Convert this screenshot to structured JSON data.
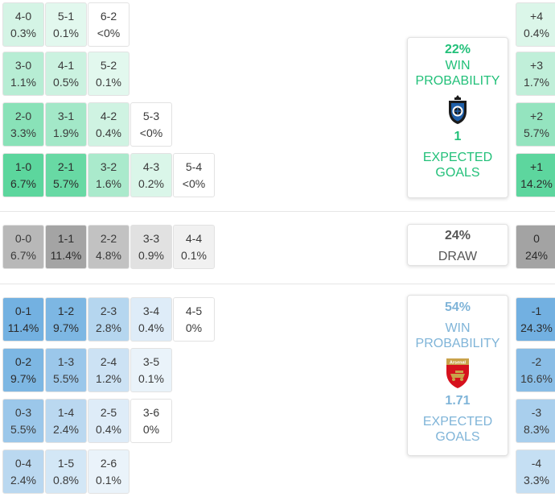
{
  "home": {
    "win_pct": "22%",
    "win_label": "WIN\nPROBABILITY",
    "expected_goals": "1",
    "xg_label": "EXPECTED\nGOALS",
    "color": "#22c079"
  },
  "draw": {
    "pct": "24%",
    "label": "DRAW"
  },
  "away": {
    "win_pct": "54%",
    "win_label": "WIN\nPROBABILITY",
    "expected_goals": "1.71",
    "xg_label": "EXPECTED\nGOALS",
    "color": "#7fb4d8"
  },
  "crest_icons": [
    "club-brugge-crest-icon",
    "arsenal-crest-icon"
  ],
  "crest_text": {
    "arsenal": "Arsenal"
  },
  "chart_data": {
    "type": "table",
    "scores": [
      {
        "score": "4-0",
        "pct": "0.3%",
        "value": 0.3,
        "group": "home",
        "row": 0,
        "col": 0
      },
      {
        "score": "5-1",
        "pct": "0.1%",
        "value": 0.1,
        "group": "home",
        "row": 0,
        "col": 1
      },
      {
        "score": "6-2",
        "pct": "<0%",
        "value": 0,
        "group": "home",
        "row": 0,
        "col": 2
      },
      {
        "score": "3-0",
        "pct": "1.1%",
        "value": 1.1,
        "group": "home",
        "row": 1,
        "col": 0
      },
      {
        "score": "4-1",
        "pct": "0.5%",
        "value": 0.5,
        "group": "home",
        "row": 1,
        "col": 1
      },
      {
        "score": "5-2",
        "pct": "0.1%",
        "value": 0.1,
        "group": "home",
        "row": 1,
        "col": 2
      },
      {
        "score": "2-0",
        "pct": "3.3%",
        "value": 3.3,
        "group": "home",
        "row": 2,
        "col": 0
      },
      {
        "score": "3-1",
        "pct": "1.9%",
        "value": 1.9,
        "group": "home",
        "row": 2,
        "col": 1
      },
      {
        "score": "4-2",
        "pct": "0.4%",
        "value": 0.4,
        "group": "home",
        "row": 2,
        "col": 2
      },
      {
        "score": "5-3",
        "pct": "<0%",
        "value": 0,
        "group": "home",
        "row": 2,
        "col": 3
      },
      {
        "score": "1-0",
        "pct": "6.7%",
        "value": 6.7,
        "group": "home",
        "row": 3,
        "col": 0
      },
      {
        "score": "2-1",
        "pct": "5.7%",
        "value": 5.7,
        "group": "home",
        "row": 3,
        "col": 1
      },
      {
        "score": "3-2",
        "pct": "1.6%",
        "value": 1.6,
        "group": "home",
        "row": 3,
        "col": 2
      },
      {
        "score": "4-3",
        "pct": "0.2%",
        "value": 0.2,
        "group": "home",
        "row": 3,
        "col": 3
      },
      {
        "score": "5-4",
        "pct": "<0%",
        "value": 0,
        "group": "home",
        "row": 3,
        "col": 4
      },
      {
        "score": "0-0",
        "pct": "6.7%",
        "value": 6.7,
        "group": "draw",
        "row": 4,
        "col": 0
      },
      {
        "score": "1-1",
        "pct": "11.4%",
        "value": 11.4,
        "group": "draw",
        "row": 4,
        "col": 1
      },
      {
        "score": "2-2",
        "pct": "4.8%",
        "value": 4.8,
        "group": "draw",
        "row": 4,
        "col": 2
      },
      {
        "score": "3-3",
        "pct": "0.9%",
        "value": 0.9,
        "group": "draw",
        "row": 4,
        "col": 3
      },
      {
        "score": "4-4",
        "pct": "0.1%",
        "value": 0.1,
        "group": "draw",
        "row": 4,
        "col": 4
      },
      {
        "score": "0-1",
        "pct": "11.4%",
        "value": 11.4,
        "group": "away",
        "row": 5,
        "col": 0
      },
      {
        "score": "1-2",
        "pct": "9.7%",
        "value": 9.7,
        "group": "away",
        "row": 5,
        "col": 1
      },
      {
        "score": "2-3",
        "pct": "2.8%",
        "value": 2.8,
        "group": "away",
        "row": 5,
        "col": 2
      },
      {
        "score": "3-4",
        "pct": "0.4%",
        "value": 0.4,
        "group": "away",
        "row": 5,
        "col": 3
      },
      {
        "score": "4-5",
        "pct": "0%",
        "value": 0,
        "group": "away",
        "row": 5,
        "col": 4
      },
      {
        "score": "0-2",
        "pct": "9.7%",
        "value": 9.7,
        "group": "away",
        "row": 6,
        "col": 0
      },
      {
        "score": "1-3",
        "pct": "5.5%",
        "value": 5.5,
        "group": "away",
        "row": 6,
        "col": 1
      },
      {
        "score": "2-4",
        "pct": "1.2%",
        "value": 1.2,
        "group": "away",
        "row": 6,
        "col": 2
      },
      {
        "score": "3-5",
        "pct": "0.1%",
        "value": 0.1,
        "group": "away",
        "row": 6,
        "col": 3
      },
      {
        "score": "0-3",
        "pct": "5.5%",
        "value": 5.5,
        "group": "away",
        "row": 7,
        "col": 0
      },
      {
        "score": "1-4",
        "pct": "2.4%",
        "value": 2.4,
        "group": "away",
        "row": 7,
        "col": 1
      },
      {
        "score": "2-5",
        "pct": "0.4%",
        "value": 0.4,
        "group": "away",
        "row": 7,
        "col": 2
      },
      {
        "score": "3-6",
        "pct": "0%",
        "value": 0,
        "group": "away",
        "row": 7,
        "col": 3
      },
      {
        "score": "0-4",
        "pct": "2.4%",
        "value": 2.4,
        "group": "away",
        "row": 8,
        "col": 0
      },
      {
        "score": "1-5",
        "pct": "0.8%",
        "value": 0.8,
        "group": "away",
        "row": 8,
        "col": 1
      },
      {
        "score": "2-6",
        "pct": "0.1%",
        "value": 0.1,
        "group": "away",
        "row": 8,
        "col": 2
      }
    ],
    "margins": [
      {
        "margin": "+4",
        "pct": "0.4%",
        "value": 0.4,
        "group": "home",
        "row": 0
      },
      {
        "margin": "+3",
        "pct": "1.7%",
        "value": 1.7,
        "group": "home",
        "row": 1
      },
      {
        "margin": "+2",
        "pct": "5.7%",
        "value": 5.7,
        "group": "home",
        "row": 2
      },
      {
        "margin": "+1",
        "pct": "14.2%",
        "value": 14.2,
        "group": "home",
        "row": 3
      },
      {
        "margin": "0",
        "pct": "24%",
        "value": 24,
        "group": "draw",
        "row": 4
      },
      {
        "margin": "-1",
        "pct": "24.3%",
        "value": 24.3,
        "group": "away",
        "row": 5
      },
      {
        "margin": "-2",
        "pct": "16.6%",
        "value": 16.6,
        "group": "away",
        "row": 6
      },
      {
        "margin": "-3",
        "pct": "8.3%",
        "value": 8.3,
        "group": "away",
        "row": 7
      },
      {
        "margin": "-4",
        "pct": "3.3%",
        "value": 3.3,
        "group": "away",
        "row": 8
      }
    ],
    "group_colors": {
      "home": "#2fcb82",
      "draw": "#8a8a8a",
      "away": "#4c9bd9"
    }
  }
}
